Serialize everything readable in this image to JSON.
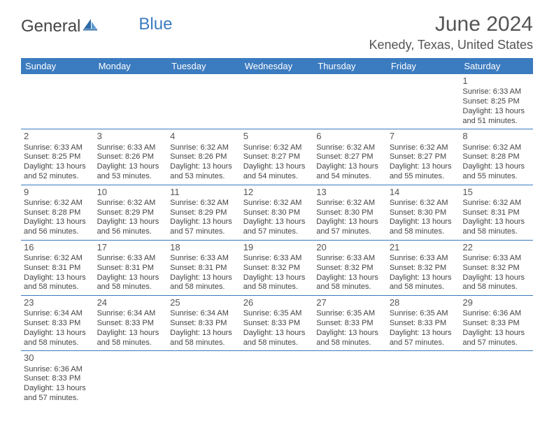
{
  "logo": {
    "general": "General",
    "blue": "Blue"
  },
  "title": "June 2024",
  "location": "Kenedy, Texas, United States",
  "colors": {
    "header_bg": "#3b7bbf",
    "header_text": "#ffffff",
    "text": "#444444",
    "border": "#3b7bbf"
  },
  "dayHeaders": [
    "Sunday",
    "Monday",
    "Tuesday",
    "Wednesday",
    "Thursday",
    "Friday",
    "Saturday"
  ],
  "weeks": [
    [
      null,
      null,
      null,
      null,
      null,
      null,
      {
        "n": "1",
        "sr": "Sunrise: 6:33 AM",
        "ss": "Sunset: 8:25 PM",
        "d1": "Daylight: 13 hours",
        "d2": "and 51 minutes."
      }
    ],
    [
      {
        "n": "2",
        "sr": "Sunrise: 6:33 AM",
        "ss": "Sunset: 8:25 PM",
        "d1": "Daylight: 13 hours",
        "d2": "and 52 minutes."
      },
      {
        "n": "3",
        "sr": "Sunrise: 6:33 AM",
        "ss": "Sunset: 8:26 PM",
        "d1": "Daylight: 13 hours",
        "d2": "and 53 minutes."
      },
      {
        "n": "4",
        "sr": "Sunrise: 6:32 AM",
        "ss": "Sunset: 8:26 PM",
        "d1": "Daylight: 13 hours",
        "d2": "and 53 minutes."
      },
      {
        "n": "5",
        "sr": "Sunrise: 6:32 AM",
        "ss": "Sunset: 8:27 PM",
        "d1": "Daylight: 13 hours",
        "d2": "and 54 minutes."
      },
      {
        "n": "6",
        "sr": "Sunrise: 6:32 AM",
        "ss": "Sunset: 8:27 PM",
        "d1": "Daylight: 13 hours",
        "d2": "and 54 minutes."
      },
      {
        "n": "7",
        "sr": "Sunrise: 6:32 AM",
        "ss": "Sunset: 8:27 PM",
        "d1": "Daylight: 13 hours",
        "d2": "and 55 minutes."
      },
      {
        "n": "8",
        "sr": "Sunrise: 6:32 AM",
        "ss": "Sunset: 8:28 PM",
        "d1": "Daylight: 13 hours",
        "d2": "and 55 minutes."
      }
    ],
    [
      {
        "n": "9",
        "sr": "Sunrise: 6:32 AM",
        "ss": "Sunset: 8:28 PM",
        "d1": "Daylight: 13 hours",
        "d2": "and 56 minutes."
      },
      {
        "n": "10",
        "sr": "Sunrise: 6:32 AM",
        "ss": "Sunset: 8:29 PM",
        "d1": "Daylight: 13 hours",
        "d2": "and 56 minutes."
      },
      {
        "n": "11",
        "sr": "Sunrise: 6:32 AM",
        "ss": "Sunset: 8:29 PM",
        "d1": "Daylight: 13 hours",
        "d2": "and 57 minutes."
      },
      {
        "n": "12",
        "sr": "Sunrise: 6:32 AM",
        "ss": "Sunset: 8:30 PM",
        "d1": "Daylight: 13 hours",
        "d2": "and 57 minutes."
      },
      {
        "n": "13",
        "sr": "Sunrise: 6:32 AM",
        "ss": "Sunset: 8:30 PM",
        "d1": "Daylight: 13 hours",
        "d2": "and 57 minutes."
      },
      {
        "n": "14",
        "sr": "Sunrise: 6:32 AM",
        "ss": "Sunset: 8:30 PM",
        "d1": "Daylight: 13 hours",
        "d2": "and 58 minutes."
      },
      {
        "n": "15",
        "sr": "Sunrise: 6:32 AM",
        "ss": "Sunset: 8:31 PM",
        "d1": "Daylight: 13 hours",
        "d2": "and 58 minutes."
      }
    ],
    [
      {
        "n": "16",
        "sr": "Sunrise: 6:32 AM",
        "ss": "Sunset: 8:31 PM",
        "d1": "Daylight: 13 hours",
        "d2": "and 58 minutes."
      },
      {
        "n": "17",
        "sr": "Sunrise: 6:33 AM",
        "ss": "Sunset: 8:31 PM",
        "d1": "Daylight: 13 hours",
        "d2": "and 58 minutes."
      },
      {
        "n": "18",
        "sr": "Sunrise: 6:33 AM",
        "ss": "Sunset: 8:31 PM",
        "d1": "Daylight: 13 hours",
        "d2": "and 58 minutes."
      },
      {
        "n": "19",
        "sr": "Sunrise: 6:33 AM",
        "ss": "Sunset: 8:32 PM",
        "d1": "Daylight: 13 hours",
        "d2": "and 58 minutes."
      },
      {
        "n": "20",
        "sr": "Sunrise: 6:33 AM",
        "ss": "Sunset: 8:32 PM",
        "d1": "Daylight: 13 hours",
        "d2": "and 58 minutes."
      },
      {
        "n": "21",
        "sr": "Sunrise: 6:33 AM",
        "ss": "Sunset: 8:32 PM",
        "d1": "Daylight: 13 hours",
        "d2": "and 58 minutes."
      },
      {
        "n": "22",
        "sr": "Sunrise: 6:33 AM",
        "ss": "Sunset: 8:32 PM",
        "d1": "Daylight: 13 hours",
        "d2": "and 58 minutes."
      }
    ],
    [
      {
        "n": "23",
        "sr": "Sunrise: 6:34 AM",
        "ss": "Sunset: 8:33 PM",
        "d1": "Daylight: 13 hours",
        "d2": "and 58 minutes."
      },
      {
        "n": "24",
        "sr": "Sunrise: 6:34 AM",
        "ss": "Sunset: 8:33 PM",
        "d1": "Daylight: 13 hours",
        "d2": "and 58 minutes."
      },
      {
        "n": "25",
        "sr": "Sunrise: 6:34 AM",
        "ss": "Sunset: 8:33 PM",
        "d1": "Daylight: 13 hours",
        "d2": "and 58 minutes."
      },
      {
        "n": "26",
        "sr": "Sunrise: 6:35 AM",
        "ss": "Sunset: 8:33 PM",
        "d1": "Daylight: 13 hours",
        "d2": "and 58 minutes."
      },
      {
        "n": "27",
        "sr": "Sunrise: 6:35 AM",
        "ss": "Sunset: 8:33 PM",
        "d1": "Daylight: 13 hours",
        "d2": "and 58 minutes."
      },
      {
        "n": "28",
        "sr": "Sunrise: 6:35 AM",
        "ss": "Sunset: 8:33 PM",
        "d1": "Daylight: 13 hours",
        "d2": "and 57 minutes."
      },
      {
        "n": "29",
        "sr": "Sunrise: 6:36 AM",
        "ss": "Sunset: 8:33 PM",
        "d1": "Daylight: 13 hours",
        "d2": "and 57 minutes."
      }
    ],
    [
      {
        "n": "30",
        "sr": "Sunrise: 6:36 AM",
        "ss": "Sunset: 8:33 PM",
        "d1": "Daylight: 13 hours",
        "d2": "and 57 minutes."
      },
      null,
      null,
      null,
      null,
      null,
      null
    ]
  ]
}
